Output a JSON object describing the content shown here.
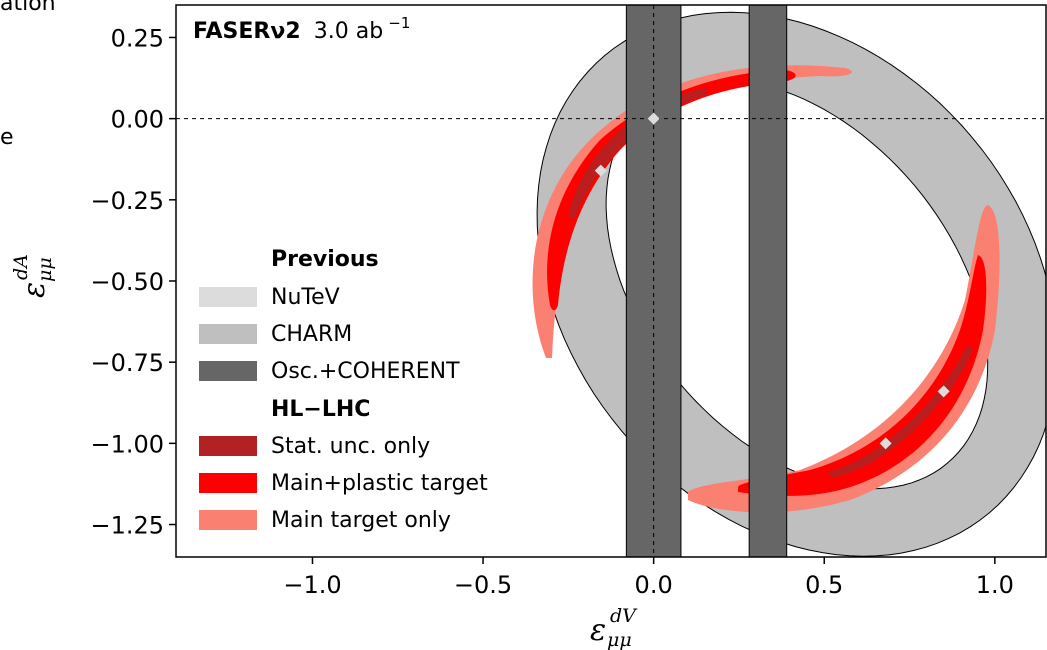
{
  "chart_data": {
    "type": "contour",
    "annotation": {
      "experiment": "FASERν2",
      "luminosity": "3.0 ab",
      "lumi_exponent": "−1"
    },
    "xlabel": {
      "symbol": "ε",
      "sup": "dV",
      "sub": "μμ"
    },
    "ylabel": {
      "symbol": "ε",
      "sup": "dA",
      "sub": "μμ"
    },
    "xlim": [
      -1.4,
      1.15
    ],
    "ylim": [
      -1.35,
      0.35
    ],
    "xticks": [
      -1.0,
      -0.5,
      0.0,
      0.5,
      1.0
    ],
    "xtick_labels": [
      "−1.0",
      "−0.5",
      "0.0",
      "0.5",
      "1.0"
    ],
    "yticks": [
      0.25,
      0.0,
      -0.25,
      -0.5,
      -0.75,
      -1.0,
      -1.25
    ],
    "ytick_labels": [
      "0.25",
      "0.00",
      "−0.25",
      "−0.50",
      "−0.75",
      "−1.00",
      "−1.25"
    ],
    "reference_lines": {
      "x": 0.0,
      "y": 0.0,
      "style": "dashed"
    },
    "legend": {
      "location": "center-left",
      "groups": [
        {
          "title": "Previous",
          "entries": [
            {
              "label": "NuTeV",
              "color": "#dcdcdc"
            },
            {
              "label": "CHARM",
              "color": "#bfbfbf"
            },
            {
              "label": "Osc.+COHERENT",
              "color": "#666666"
            }
          ]
        },
        {
          "title": "HL−LHC",
          "entries": [
            {
              "label": "Stat. unc. only",
              "color": "#b22222"
            },
            {
              "label": "Main+plastic target",
              "color": "#ff0000"
            },
            {
              "label": "Main target only",
              "color": "#fa8072"
            }
          ]
        }
      ]
    },
    "regions": {
      "charm_ring": {
        "outer": {
          "cx": 0.42,
          "cy": -0.51,
          "rx": 0.67,
          "ry": 0.92,
          "rot": -40
        },
        "inner": {
          "cx": 0.42,
          "cy": -0.51,
          "rx": 0.45,
          "ry": 0.72,
          "rot": -40
        }
      },
      "osc_coherent_bands": [
        [
          -0.08,
          0.08
        ],
        [
          0.28,
          0.39
        ]
      ],
      "sm_points": [
        [
          0.0,
          0.0
        ],
        [
          -0.155,
          -0.16
        ],
        [
          0.68,
          -1.0
        ],
        [
          0.85,
          -0.84
        ]
      ]
    },
    "cropped_text": {
      "top": "ation",
      "left": "e"
    }
  }
}
